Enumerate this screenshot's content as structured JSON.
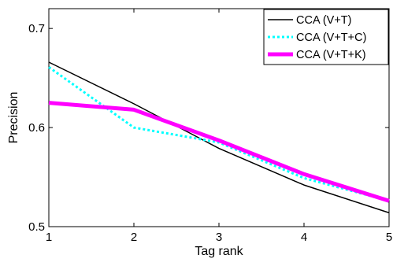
{
  "chart_data": {
    "type": "line",
    "title": "",
    "xlabel": "Tag rank",
    "ylabel": "Precision",
    "xlim": [
      1,
      5
    ],
    "ylim": [
      0.5,
      0.72
    ],
    "x_ticks": [
      1,
      2,
      3,
      4,
      5
    ],
    "y_ticks": [
      0.5,
      0.6,
      0.7
    ],
    "y_tick_labels": [
      "0.5",
      "0.6",
      "0.7"
    ],
    "x": [
      1,
      2,
      3,
      4,
      5
    ],
    "grid": false,
    "legend_position": "top-right",
    "series": [
      {
        "name": "CCA (V+T)",
        "values": [
          0.666,
          0.624,
          0.579,
          0.542,
          0.514
        ],
        "color": "#000000",
        "style": "solid",
        "width": 1.5
      },
      {
        "name": "CCA (V+T+C)",
        "values": [
          0.661,
          0.6,
          0.585,
          0.549,
          0.526
        ],
        "color": "#00ffff",
        "style": "dotted",
        "width": 3
      },
      {
        "name": "CCA (V+T+K)",
        "values": [
          0.625,
          0.618,
          0.587,
          0.553,
          0.526
        ],
        "color": "#ff00ff",
        "style": "solid",
        "width": 5
      }
    ]
  }
}
